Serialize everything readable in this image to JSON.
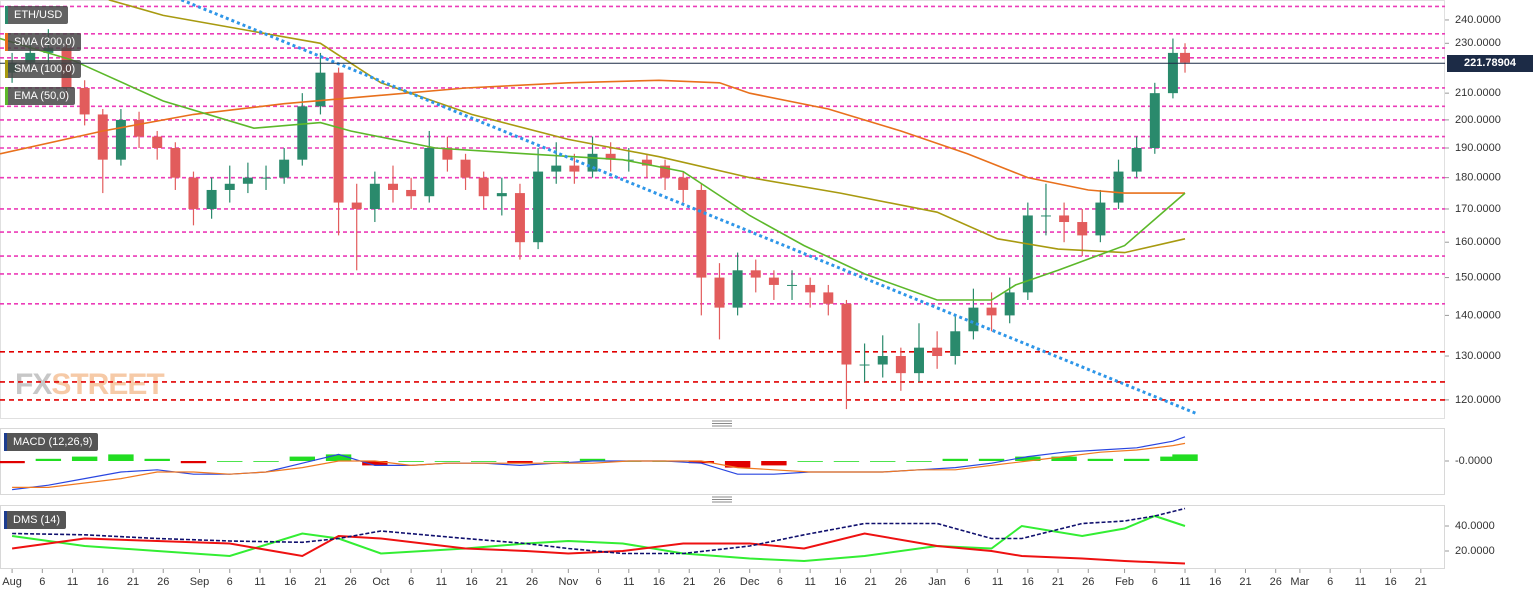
{
  "chart_data": [
    {
      "type": "candlestick",
      "symbol": "ETH/USD",
      "log_scale": true,
      "ylim": [
        116.1,
        248.9
      ],
      "yticks": [
        {
          "value": 240,
          "label": "240.0000"
        },
        {
          "value": 230,
          "label": "230.0000"
        },
        {
          "value": 210,
          "label": "210.0000"
        },
        {
          "value": 200,
          "label": "200.0000"
        },
        {
          "value": 190,
          "label": "190.0000"
        },
        {
          "value": 180,
          "label": "180.0000"
        },
        {
          "value": 170,
          "label": "170.0000"
        },
        {
          "value": 160,
          "label": "160.0000"
        },
        {
          "value": 150,
          "label": "150.0000"
        },
        {
          "value": 140,
          "label": "140.0000"
        },
        {
          "value": 130,
          "label": "130.0000"
        },
        {
          "value": 120,
          "label": "120.0000"
        }
      ],
      "up_color": "#2a8a6c",
      "down_color": "#e25c5c",
      "x": [
        0,
        3,
        6,
        9,
        12,
        15,
        18,
        21,
        24,
        27,
        30,
        33,
        36,
        39,
        42,
        45,
        48,
        51,
        54,
        57,
        60,
        63,
        66,
        69,
        72,
        75,
        78,
        81,
        84,
        87,
        90,
        93,
        96,
        99,
        102,
        105,
        108,
        111,
        114,
        117,
        120,
        123,
        126,
        129,
        132,
        135,
        138,
        141,
        144,
        147,
        150,
        153,
        156,
        159,
        162,
        165,
        168,
        171,
        174,
        177,
        180,
        183,
        186,
        189,
        192,
        194
      ],
      "open": [
        218,
        222,
        226,
        228,
        212,
        202,
        186,
        200,
        194,
        190,
        180,
        170,
        176,
        178,
        180,
        180,
        186,
        205,
        218,
        172,
        170,
        178,
        176,
        174,
        190,
        186,
        180,
        174,
        175,
        160,
        182,
        184,
        182,
        188,
        186,
        186,
        184,
        180,
        176,
        150,
        142,
        152,
        150,
        148,
        148,
        146,
        143,
        128,
        128,
        130,
        126,
        132,
        130,
        136,
        142,
        140,
        146,
        168,
        168,
        166,
        162,
        172,
        182,
        190,
        210,
        226
      ],
      "high": [
        226,
        232,
        236,
        230,
        215,
        204,
        204,
        203,
        196,
        192,
        182,
        180,
        184,
        185,
        184,
        190,
        210,
        226,
        220,
        178,
        182,
        184,
        180,
        196,
        194,
        188,
        182,
        180,
        178,
        190,
        192,
        188,
        194,
        192,
        190,
        188,
        186,
        182,
        178,
        154,
        157,
        155,
        152,
        152,
        150,
        148,
        144,
        133,
        135,
        132,
        138,
        136,
        140,
        147,
        146,
        150,
        172,
        178,
        172,
        170,
        176,
        186,
        194,
        214,
        232,
        230
      ],
      "low": [
        214,
        219,
        222,
        208,
        198,
        175,
        184,
        190,
        186,
        176,
        165,
        167,
        172,
        175,
        176,
        178,
        184,
        202,
        162,
        152,
        166,
        172,
        170,
        172,
        182,
        176,
        170,
        168,
        155,
        158,
        178,
        178,
        180,
        182,
        182,
        180,
        176,
        172,
        140,
        134,
        140,
        146,
        144,
        144,
        142,
        140,
        118,
        124,
        125,
        122,
        124,
        127,
        128,
        134,
        136,
        138,
        144,
        162,
        160,
        156,
        160,
        170,
        180,
        188,
        208,
        218
      ],
      "close": [
        222,
        226,
        228,
        212,
        202,
        186,
        200,
        194,
        190,
        180,
        170,
        176,
        178,
        180,
        180,
        186,
        205,
        218,
        172,
        170,
        178,
        176,
        174,
        190,
        186,
        180,
        174,
        175,
        160,
        182,
        184,
        182,
        188,
        186,
        186,
        184,
        180,
        176,
        150,
        142,
        152,
        150,
        148,
        148,
        146,
        143,
        128,
        128,
        130,
        126,
        132,
        130,
        136,
        142,
        140,
        146,
        168,
        168,
        166,
        162,
        172,
        182,
        190,
        210,
        226,
        222
      ],
      "series": [
        {
          "name": "SMA (200,0)",
          "color": "#e8701c",
          "x": [
            -2,
            15,
            30,
            45,
            60,
            75,
            92,
            107,
            117,
            122,
            135,
            147,
            158,
            168,
            178,
            184,
            194
          ],
          "values": [
            188,
            196,
            202,
            206,
            209,
            212,
            214,
            215,
            214,
            210,
            204,
            196,
            188,
            180,
            176,
            175,
            175
          ]
        },
        {
          "name": "SMA (100,0)",
          "color": "#a89a10",
          "x": [
            16,
            25,
            40,
            51,
            61,
            76,
            92,
            107,
            122,
            137,
            153,
            163,
            173,
            184,
            194
          ],
          "values": [
            249,
            242,
            235,
            230,
            214,
            202,
            193,
            187,
            180,
            175,
            169,
            161,
            158,
            157,
            161
          ]
        },
        {
          "name": "EMA (50,0)",
          "color": "#5cb82a",
          "x": [
            -2,
            10,
            25,
            40,
            51,
            56,
            70,
            85,
            101,
            111,
            122,
            131,
            141,
            153,
            162,
            166,
            173,
            184,
            194
          ],
          "values": [
            232,
            223,
            207,
            197,
            199,
            196,
            190,
            188,
            186,
            182,
            168,
            159,
            151,
            144,
            144,
            148,
            152,
            159,
            175
          ]
        }
      ],
      "horizontal_lines": [
        {
          "value": 246,
          "color": "#ec3cb8"
        },
        {
          "value": 234,
          "color": "#ec3cb8"
        },
        {
          "value": 228,
          "color": "#ec3cb8"
        },
        {
          "value": 224,
          "color": "#ec3cb8"
        },
        {
          "value": 212,
          "color": "#ec3cb8"
        },
        {
          "value": 205,
          "color": "#ec3cb8"
        },
        {
          "value": 200,
          "color": "#ec3cb8"
        },
        {
          "value": 194,
          "color": "#ec3cb8"
        },
        {
          "value": 190,
          "color": "#ec3cb8"
        },
        {
          "value": 180,
          "color": "#ec3cb8"
        },
        {
          "value": 170,
          "color": "#ec3cb8"
        },
        {
          "value": 163,
          "color": "#ec3cb8"
        },
        {
          "value": 156,
          "color": "#ec3cb8"
        },
        {
          "value": 151,
          "color": "#ec3cb8"
        },
        {
          "value": 143,
          "color": "#ec3cb8"
        },
        {
          "value": 131,
          "color": "#e00000"
        },
        {
          "value": 124,
          "color": "#e00000"
        },
        {
          "value": 120,
          "color": "#e00000"
        }
      ],
      "trendline": {
        "color": "#2e96e8",
        "x": [
          28,
          196
        ],
        "values": [
          249,
          117
        ]
      },
      "last_price": {
        "value": 221.78904,
        "label": "221.78904"
      },
      "watermark": [
        "FX",
        "STREET"
      ]
    },
    {
      "type": "macd",
      "title": "MACD (12,26,9)",
      "ylim": [
        -15,
        15
      ],
      "yticks": [
        {
          "value": 0,
          "label": "-0.0000"
        }
      ],
      "up_color": "#22dd22",
      "down_color": "#e00000",
      "x": [
        0,
        6,
        12,
        18,
        24,
        30,
        36,
        42,
        48,
        54,
        60,
        66,
        72,
        78,
        84,
        90,
        96,
        102,
        108,
        114,
        120,
        126,
        132,
        138,
        144,
        150,
        156,
        162,
        168,
        174,
        180,
        186,
        192,
        194
      ],
      "series": [
        {
          "color": "#2a46e0",
          "values": [
            -13,
            -11,
            -8,
            -5,
            -4,
            -6,
            -6,
            -5,
            -1,
            3,
            -2,
            -2,
            -1,
            -1,
            -2,
            -1,
            0,
            0,
            0,
            -1,
            -6,
            -6,
            -5,
            -5,
            -5,
            -4,
            -3,
            -1,
            2,
            4,
            5,
            6,
            9,
            11
          ]
        },
        {
          "color": "#f07820",
          "values": [
            -12,
            -12,
            -10,
            -8,
            -5,
            -5,
            -6,
            -5,
            -3,
            0,
            0,
            -2,
            -1,
            -1,
            -1,
            -1,
            -1,
            0,
            0,
            0,
            -3,
            -4,
            -5,
            -5,
            -5,
            -4,
            -4,
            -2,
            0,
            2,
            4,
            5,
            7,
            8
          ]
        }
      ],
      "histogram": [
        -1,
        1,
        2,
        3,
        1,
        -1,
        0,
        0,
        2,
        3,
        -2,
        0,
        0,
        0,
        -1,
        0,
        1,
        0,
        0,
        -1,
        -3,
        -2,
        0,
        0,
        0,
        0,
        1,
        1,
        2,
        2,
        1,
        1,
        2,
        3
      ]
    },
    {
      "type": "dms",
      "title": "DMS (14)",
      "ylim": [
        6.4,
        56.8
      ],
      "yticks": [
        {
          "value": 40,
          "label": "40.0000"
        },
        {
          "value": 20,
          "label": "20.0000"
        }
      ],
      "x": [
        0,
        12,
        24,
        36,
        48,
        54,
        61,
        75,
        85,
        92,
        101,
        111,
        122,
        131,
        141,
        153,
        162,
        167,
        177,
        184,
        189,
        194
      ],
      "series": [
        {
          "color": "#33ee33",
          "values": [
            32,
            24,
            20,
            16,
            34,
            30,
            18,
            22,
            26,
            28,
            26,
            18,
            14,
            12,
            16,
            24,
            22,
            40,
            32,
            38,
            48,
            40
          ]
        },
        {
          "color": "#ee1111",
          "values": [
            22,
            30,
            28,
            26,
            16,
            32,
            30,
            22,
            20,
            18,
            20,
            26,
            26,
            22,
            34,
            24,
            20,
            16,
            14,
            12,
            11,
            10
          ]
        },
        {
          "color": "#10106e",
          "dashed": true,
          "values": [
            34,
            33,
            30,
            28,
            27,
            30,
            36,
            30,
            26,
            22,
            18,
            18,
            24,
            33,
            42,
            42,
            30,
            30,
            42,
            44,
            48,
            54
          ]
        }
      ],
      "xlim": [
        -2,
        237
      ],
      "xticks": [
        {
          "value": 0,
          "label": "Aug"
        },
        {
          "value": 5,
          "label": "6"
        },
        {
          "value": 10,
          "label": "11"
        },
        {
          "value": 15,
          "label": "16"
        },
        {
          "value": 20,
          "label": "21"
        },
        {
          "value": 25,
          "label": "26"
        },
        {
          "value": 31,
          "label": "Sep"
        },
        {
          "value": 36,
          "label": "6"
        },
        {
          "value": 41,
          "label": "11"
        },
        {
          "value": 46,
          "label": "16"
        },
        {
          "value": 51,
          "label": "21"
        },
        {
          "value": 56,
          "label": "26"
        },
        {
          "value": 61,
          "label": "Oct"
        },
        {
          "value": 66,
          "label": "6"
        },
        {
          "value": 71,
          "label": "11"
        },
        {
          "value": 76,
          "label": "16"
        },
        {
          "value": 81,
          "label": "21"
        },
        {
          "value": 86,
          "label": "26"
        },
        {
          "value": 92,
          "label": "Nov"
        },
        {
          "value": 97,
          "label": "6"
        },
        {
          "value": 102,
          "label": "11"
        },
        {
          "value": 107,
          "label": "16"
        },
        {
          "value": 112,
          "label": "21"
        },
        {
          "value": 117,
          "label": "26"
        },
        {
          "value": 122,
          "label": "Dec"
        },
        {
          "value": 127,
          "label": "6"
        },
        {
          "value": 132,
          "label": "11"
        },
        {
          "value": 137,
          "label": "16"
        },
        {
          "value": 142,
          "label": "21"
        },
        {
          "value": 147,
          "label": "26"
        },
        {
          "value": 153,
          "label": "Jan"
        },
        {
          "value": 158,
          "label": "6"
        },
        {
          "value": 163,
          "label": "11"
        },
        {
          "value": 168,
          "label": "16"
        },
        {
          "value": 173,
          "label": "21"
        },
        {
          "value": 178,
          "label": "26"
        },
        {
          "value": 184,
          "label": "Feb"
        },
        {
          "value": 189,
          "label": "6"
        },
        {
          "value": 194,
          "label": "11"
        },
        {
          "value": 199,
          "label": "16"
        },
        {
          "value": 204,
          "label": "21"
        },
        {
          "value": 209,
          "label": "26"
        },
        {
          "value": 213,
          "label": "Mar"
        },
        {
          "value": 218,
          "label": "6"
        },
        {
          "value": 223,
          "label": "11"
        },
        {
          "value": 228,
          "label": "16"
        },
        {
          "value": 233,
          "label": "21"
        }
      ]
    }
  ]
}
